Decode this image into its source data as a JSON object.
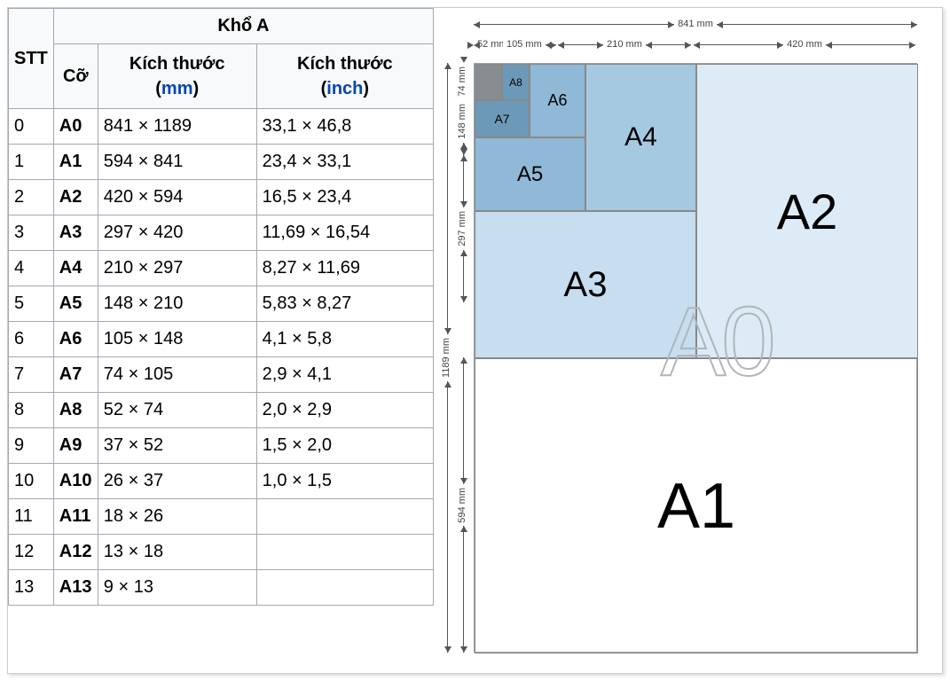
{
  "table": {
    "header_stt": "STT",
    "header_kho": "Khổ A",
    "sub_co": "Cỡ",
    "sub_mm_label": "Kích thước",
    "sub_mm_unit": "mm",
    "sub_inch_label": "Kích thước",
    "sub_inch_unit": "inch",
    "link_color": "#0645ad",
    "rows": [
      {
        "stt": "0",
        "size": "A0",
        "mm": "841 × 1189",
        "inch": "33,1 × 46,8"
      },
      {
        "stt": "1",
        "size": "A1",
        "mm": "594 × 841",
        "inch": "23,4 × 33,1"
      },
      {
        "stt": "2",
        "size": "A2",
        "mm": "420 × 594",
        "inch": "16,5 × 23,4"
      },
      {
        "stt": "3",
        "size": "A3",
        "mm": "297 × 420",
        "inch": "11,69 × 16,54"
      },
      {
        "stt": "4",
        "size": "A4",
        "mm": "210 × 297",
        "inch": "8,27 × 11,69"
      },
      {
        "stt": "5",
        "size": "A5",
        "mm": "148 × 210",
        "inch": "5,83 × 8,27"
      },
      {
        "stt": "6",
        "size": "A6",
        "mm": "105 × 148",
        "inch": "4,1 × 5,8"
      },
      {
        "stt": "7",
        "size": "A7",
        "mm": "74 × 105",
        "inch": "2,9 × 4,1"
      },
      {
        "stt": "8",
        "size": "A8",
        "mm": "52 × 74",
        "inch": "2,0 × 2,9"
      },
      {
        "stt": "9",
        "size": "A9",
        "mm": "37 × 52",
        "inch": "1,5 × 2,0"
      },
      {
        "stt": "10",
        "size": "A10",
        "mm": "26 × 37",
        "inch": "1,0 × 1,5"
      },
      {
        "stt": "11",
        "size": "A11",
        "mm": "18 × 26",
        "inch": ""
      },
      {
        "stt": "12",
        "size": "A12",
        "mm": "13 × 18",
        "inch": ""
      },
      {
        "stt": "13",
        "size": "A13",
        "mm": "9 × 13",
        "inch": ""
      }
    ]
  },
  "diagram": {
    "type": "nested-rectangles",
    "outline_label": "A0",
    "boxes": {
      "a1": {
        "label": "A1",
        "bg": "#ffffff"
      },
      "a2": {
        "label": "A2",
        "bg": "#dcebf5"
      },
      "a3": {
        "label": "A3",
        "bg": "#c6def0"
      },
      "a4": {
        "label": "A4",
        "bg": "#a6c9e2"
      },
      "a5": {
        "label": "A5",
        "bg": "#8fb9d6"
      },
      "a6": {
        "label": "A6",
        "bg": "#8fb9d6"
      },
      "a7": {
        "label": "A7",
        "bg": "#6d99b8"
      },
      "a8": {
        "label": "A8",
        "bg": "#6d99b8"
      },
      "a9": {
        "label": "",
        "bg": "#888d91"
      }
    },
    "dims_top": {
      "d1": "841 mm",
      "d2": "52 mm",
      "d3": "105 mm",
      "d4": "210 mm",
      "d5": "420 mm"
    },
    "dims_left": {
      "d1": "74 mm",
      "d2": "148 mm",
      "d3": "297 mm",
      "d4": "1189 mm",
      "d5": "594 mm"
    },
    "border_color": "#9aa0a6",
    "dim_color": "#555555",
    "background": "#ffffff"
  }
}
